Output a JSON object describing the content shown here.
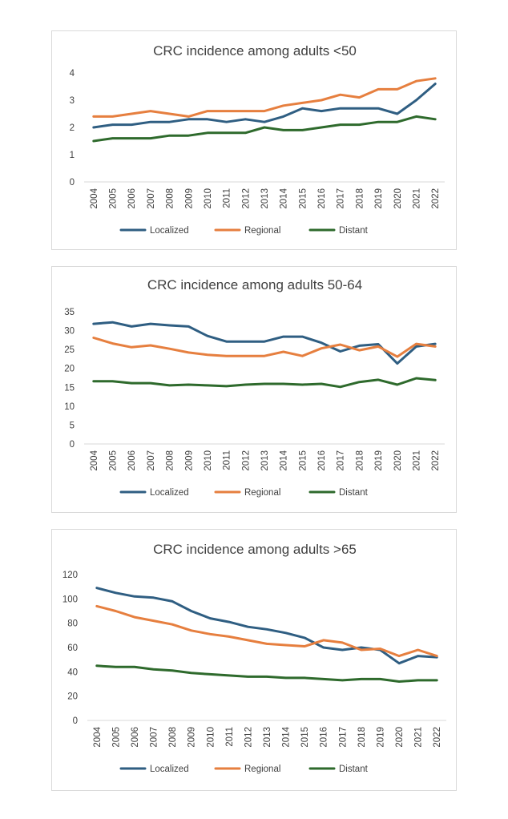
{
  "colors": {
    "localized": "#2f5e82",
    "regional": "#e67f3f",
    "distant": "#2e6a2c",
    "axis": "#d9d9d9",
    "text": "#404040"
  },
  "chart_data": [
    {
      "type": "line",
      "title": "CRC incidence among adults <50",
      "categories": [
        "2004",
        "2005",
        "2006",
        "2007",
        "2008",
        "2009",
        "2010",
        "2011",
        "2012",
        "2013",
        "2014",
        "2015",
        "2016",
        "2017",
        "2018",
        "2019",
        "2020",
        "2021",
        "2022"
      ],
      "ylim": [
        0,
        4
      ],
      "yticks": [
        0,
        1,
        2,
        3,
        4
      ],
      "grid": false,
      "legend": "bottom",
      "series": [
        {
          "name": "Localized",
          "color_key": "localized",
          "values": [
            2.0,
            2.1,
            2.1,
            2.2,
            2.2,
            2.3,
            2.3,
            2.2,
            2.3,
            2.2,
            2.4,
            2.7,
            2.6,
            2.7,
            2.7,
            2.7,
            2.5,
            3.0,
            3.6
          ]
        },
        {
          "name": "Regional",
          "color_key": "regional",
          "values": [
            2.4,
            2.4,
            2.5,
            2.6,
            2.5,
            2.4,
            2.6,
            2.6,
            2.6,
            2.6,
            2.8,
            2.9,
            3.0,
            3.2,
            3.1,
            3.4,
            3.4,
            3.7,
            3.8
          ]
        },
        {
          "name": "Distant",
          "color_key": "distant",
          "values": [
            1.5,
            1.6,
            1.6,
            1.6,
            1.7,
            1.7,
            1.8,
            1.8,
            1.8,
            2.0,
            1.9,
            1.9,
            2.0,
            2.1,
            2.1,
            2.2,
            2.2,
            2.4,
            2.3
          ]
        }
      ]
    },
    {
      "type": "line",
      "title": "CRC incidence among adults 50-64",
      "categories": [
        "2004",
        "2005",
        "2006",
        "2007",
        "2008",
        "2009",
        "2010",
        "2011",
        "2012",
        "2013",
        "2014",
        "2015",
        "2016",
        "2017",
        "2018",
        "2019",
        "2020",
        "2021",
        "2022"
      ],
      "ylim": [
        0,
        35
      ],
      "yticks": [
        0,
        5,
        10,
        15,
        20,
        25,
        30,
        35
      ],
      "grid": false,
      "legend": "bottom",
      "series": [
        {
          "name": "Localized",
          "color_key": "localized",
          "values": [
            31.8,
            32.2,
            31.1,
            31.8,
            31.4,
            31.1,
            28.6,
            27.1,
            27.1,
            27.1,
            28.4,
            28.4,
            26.8,
            24.5,
            26.0,
            26.4,
            21.3,
            25.8,
            26.5
          ]
        },
        {
          "name": "Regional",
          "color_key": "regional",
          "values": [
            28.1,
            26.6,
            25.6,
            26.1,
            25.2,
            24.2,
            23.6,
            23.3,
            23.3,
            23.3,
            24.4,
            23.3,
            25.3,
            26.3,
            24.8,
            25.8,
            23.1,
            26.5,
            25.8
          ]
        },
        {
          "name": "Distant",
          "color_key": "distant",
          "values": [
            16.6,
            16.6,
            16.1,
            16.1,
            15.5,
            15.7,
            15.5,
            15.3,
            15.7,
            15.9,
            15.9,
            15.7,
            15.9,
            15.1,
            16.4,
            17.0,
            15.7,
            17.4,
            16.9
          ]
        }
      ]
    },
    {
      "type": "line",
      "title": "CRC incidence among adults >65",
      "categories": [
        "2004",
        "2005",
        "2006",
        "2007",
        "2008",
        "2009",
        "2010",
        "2011",
        "2012",
        "2013",
        "2014",
        "2015",
        "2016",
        "2017",
        "2018",
        "2019",
        "2020",
        "2021",
        "2022"
      ],
      "ylim": [
        0,
        120
      ],
      "yticks": [
        0,
        20,
        40,
        60,
        80,
        100,
        120
      ],
      "grid": false,
      "legend": "bottom",
      "series": [
        {
          "name": "Localized",
          "color_key": "localized",
          "values": [
            109,
            105,
            102,
            101,
            98,
            90,
            84,
            81,
            77,
            75,
            72,
            68,
            60,
            58,
            60,
            58,
            47,
            53,
            52
          ]
        },
        {
          "name": "Regional",
          "color_key": "regional",
          "values": [
            94,
            90,
            85,
            82,
            79,
            74,
            71,
            69,
            66,
            63,
            62,
            61,
            66,
            64,
            58,
            59,
            53,
            58,
            53
          ]
        },
        {
          "name": "Distant",
          "color_key": "distant",
          "values": [
            45,
            44,
            44,
            42,
            41,
            39,
            38,
            37,
            36,
            36,
            35,
            35,
            34,
            33,
            34,
            34,
            32,
            33,
            33
          ]
        }
      ]
    }
  ]
}
